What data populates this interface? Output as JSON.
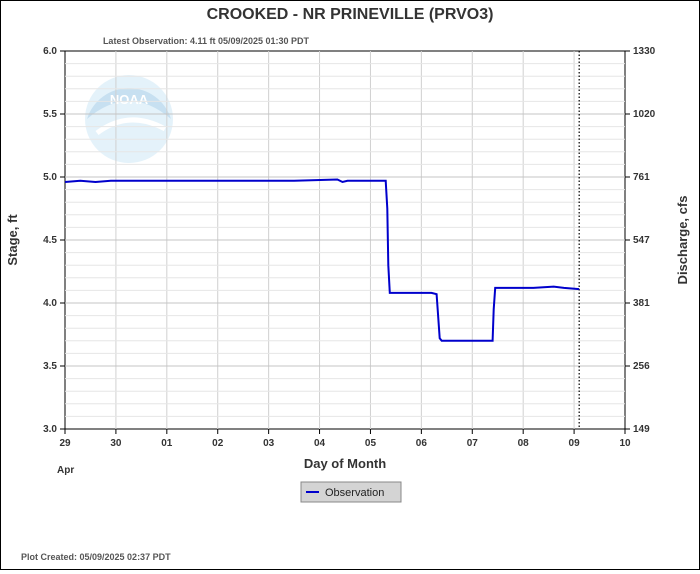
{
  "title": "CROOKED - NR PRINEVILLE  (PRVO3)",
  "latest_observation": "Latest Observation: 4.11 ft 05/09/2025 01:30 PDT",
  "plot_created": "Plot Created: 05/09/2025 02:37 PDT",
  "logo_text": "NOAA",
  "colors": {
    "series": "#0000cc",
    "grid": "#d0d0d0",
    "legend_bg": "#d4d4d4",
    "logo": "#cfe9f7"
  },
  "chart_data": {
    "type": "line",
    "title": "CROOKED - NR PRINEVILLE  (PRVO3)",
    "xlabel": "Day of Month",
    "ylabel": "Stage, ft",
    "y2label": "Discharge, cfs",
    "xlim": [
      0,
      11
    ],
    "ylim": [
      3.0,
      6.0
    ],
    "x_ticks": [
      "29",
      "30",
      "01",
      "02",
      "03",
      "04",
      "05",
      "06",
      "07",
      "08",
      "09",
      "10"
    ],
    "x_tick_sub": "Apr",
    "y_ticks": [
      "3.0",
      "3.5",
      "4.0",
      "4.5",
      "5.0",
      "5.5",
      "6.0"
    ],
    "y2_ticks": [
      {
        "stage": 3.0,
        "label": "149"
      },
      {
        "stage": 3.5,
        "label": "256"
      },
      {
        "stage": 4.0,
        "label": "381"
      },
      {
        "stage": 4.5,
        "label": "547"
      },
      {
        "stage": 5.0,
        "label": "761"
      },
      {
        "stage": 5.5,
        "label": "1020"
      },
      {
        "stage": 6.0,
        "label": "1330"
      }
    ],
    "grid": true,
    "legend_position": "bottom-center",
    "now_marker_day": 10.1,
    "series": [
      {
        "name": "Observation",
        "points": [
          [
            0.0,
            4.96
          ],
          [
            0.3,
            4.97
          ],
          [
            0.6,
            4.96
          ],
          [
            0.9,
            4.97
          ],
          [
            1.5,
            4.97
          ],
          [
            2.5,
            4.97
          ],
          [
            3.5,
            4.97
          ],
          [
            4.5,
            4.97
          ],
          [
            5.35,
            4.98
          ],
          [
            5.45,
            4.96
          ],
          [
            5.55,
            4.97
          ],
          [
            6.3,
            4.97
          ],
          [
            6.33,
            4.75
          ],
          [
            6.35,
            4.3
          ],
          [
            6.38,
            4.08
          ],
          [
            6.6,
            4.08
          ],
          [
            6.9,
            4.08
          ],
          [
            7.2,
            4.08
          ],
          [
            7.3,
            4.07
          ],
          [
            7.36,
            3.72
          ],
          [
            7.4,
            3.7
          ],
          [
            7.7,
            3.7
          ],
          [
            8.0,
            3.7
          ],
          [
            8.4,
            3.7
          ],
          [
            8.42,
            3.95
          ],
          [
            8.45,
            4.12
          ],
          [
            8.8,
            4.12
          ],
          [
            9.2,
            4.12
          ],
          [
            9.6,
            4.13
          ],
          [
            9.8,
            4.12
          ],
          [
            10.1,
            4.11
          ]
        ]
      }
    ]
  }
}
